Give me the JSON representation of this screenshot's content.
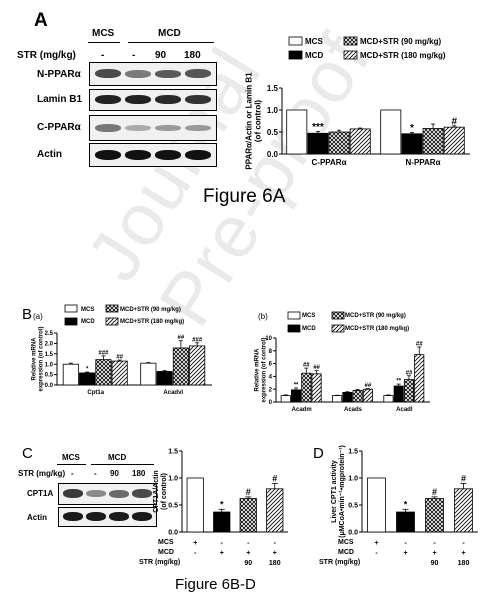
{
  "watermark": "Journal Pre-proof",
  "figure_6a": {
    "panel_letter": "A",
    "caption": "Figure 6A",
    "blot": {
      "group_labels": [
        "MCS",
        "MCD"
      ],
      "str_label": "STR (mg/kg)",
      "str_values": [
        "-",
        "-",
        "90",
        "180"
      ],
      "row_labels": [
        "N-PPARα",
        "Lamin B1",
        "C-PPARα",
        "Actin"
      ]
    },
    "legend": [
      "MCS",
      "MCD",
      "MCD+STR (90 mg/kg)",
      "MCD+STR (180 mg/kg)"
    ],
    "significance": [
      "***",
      "*",
      "#"
    ]
  },
  "figure_6bd": {
    "caption": "Figure 6B-D",
    "panel_b_letter": "B",
    "panel_b_sub": [
      "(a)",
      "(b)"
    ],
    "panel_c_letter": "C",
    "panel_d_letter": "D",
    "blot_c": {
      "group_labels": [
        "MCS",
        "MCD"
      ],
      "str_label": "STR (mg/kg)",
      "str_values": [
        "-",
        "-",
        "90",
        "180"
      ],
      "row_labels": [
        "CPT1A",
        "Actin"
      ]
    },
    "treatment_table": {
      "row_labels": [
        "MCS",
        "MCD",
        "STR (mg/kg)"
      ],
      "rows": [
        [
          "+",
          "-",
          "-",
          "-"
        ],
        [
          "-",
          "+",
          "+",
          "+"
        ],
        [
          "",
          "",
          "90",
          "180"
        ]
      ]
    },
    "legend": [
      "MCS",
      "MCD",
      "MCD+STR (90 mg/kg)",
      "MCD+STR (180 mg/kg)"
    ]
  },
  "chart_data": [
    {
      "id": "fig6a",
      "type": "bar",
      "ylabel": "PPARα/Actin or Lamin B1 (of control)",
      "ylim": [
        0,
        1.5
      ],
      "yticks": [
        "0.0",
        "0.5",
        "1.0",
        "1.5"
      ],
      "categories": [
        "C-PPARα",
        "N-PPARα"
      ],
      "series": [
        {
          "name": "MCS",
          "values": [
            1.0,
            1.0
          ],
          "errors": [
            0,
            0
          ]
        },
        {
          "name": "MCD",
          "values": [
            0.47,
            0.46
          ],
          "errors": [
            0.04,
            0.03
          ]
        },
        {
          "name": "MCD+STR (90 mg/kg)",
          "values": [
            0.5,
            0.58
          ],
          "errors": [
            0.04,
            0.1
          ]
        },
        {
          "name": "MCD+STR (180 mg/kg)",
          "values": [
            0.57,
            0.61
          ],
          "errors": [
            0.02,
            0.03
          ]
        }
      ],
      "annotations": [
        {
          "category": "C-PPARα",
          "series": "MCD",
          "text": "***"
        },
        {
          "category": "N-PPARα",
          "series": "MCD",
          "text": "*"
        },
        {
          "category": "N-PPARα",
          "series": "MCD+STR (180 mg/kg)",
          "text": "#"
        }
      ]
    },
    {
      "id": "fig6ba",
      "type": "bar",
      "ylabel": "Relative mRNA expression (of control)",
      "ylim": [
        0,
        2.5
      ],
      "yticks": [
        "0.0",
        "0.5",
        "1.0",
        "1.5",
        "2.0",
        "2.5"
      ],
      "categories": [
        "Cpt1a",
        "Acadvl"
      ],
      "series": [
        {
          "name": "MCS",
          "values": [
            1.0,
            1.05
          ],
          "errors": [
            0.05,
            0.03
          ]
        },
        {
          "name": "MCD",
          "values": [
            0.58,
            0.65
          ],
          "errors": [
            0.04,
            0.04
          ]
        },
        {
          "name": "MCD+STR (90 mg/kg)",
          "values": [
            1.22,
            1.78
          ],
          "errors": [
            0.18,
            0.35
          ]
        },
        {
          "name": "MCD+STR (180 mg/kg)",
          "values": [
            1.15,
            1.88
          ],
          "errors": [
            0.05,
            0.15
          ]
        }
      ],
      "annotations": [
        {
          "category": "Cpt1a",
          "series": "MCD",
          "text": "*"
        },
        {
          "category": "Cpt1a",
          "series": "MCD+STR (90 mg/kg)",
          "text": "###"
        },
        {
          "category": "Cpt1a",
          "series": "MCD+STR (180 mg/kg)",
          "text": "##"
        },
        {
          "category": "Acadvl",
          "series": "MCD+STR (90 mg/kg)",
          "text": "##"
        },
        {
          "category": "Acadvl",
          "series": "MCD+STR (180 mg/kg)",
          "text": "###"
        }
      ]
    },
    {
      "id": "fig6bb",
      "type": "bar",
      "ylabel": "Relative mRNA expression (of control)",
      "ylim": [
        0,
        10
      ],
      "yticks": [
        "0",
        "2",
        "4",
        "6",
        "8",
        "10"
      ],
      "categories": [
        "Acadm",
        "Acads",
        "Acadl"
      ],
      "series": [
        {
          "name": "MCS",
          "values": [
            1.0,
            1.0,
            1.0
          ],
          "errors": [
            0.1,
            0.05,
            0.1
          ]
        },
        {
          "name": "MCD",
          "values": [
            1.9,
            1.5,
            2.5
          ],
          "errors": [
            0.3,
            0.1,
            0.3
          ]
        },
        {
          "name": "MCD+STR (90 mg/kg)",
          "values": [
            4.5,
            1.8,
            3.5
          ],
          "errors": [
            0.8,
            0.15,
            0.6
          ]
        },
        {
          "name": "MCD+STR (180 mg/kg)",
          "values": [
            4.4,
            2.0,
            7.4
          ],
          "errors": [
            0.5,
            0.1,
            1.2
          ]
        }
      ],
      "annotations": [
        {
          "category": "Acadm",
          "series": "MCD",
          "text": "**"
        },
        {
          "category": "Acadm",
          "series": "MCD+STR (90 mg/kg)",
          "text": "##"
        },
        {
          "category": "Acadm",
          "series": "MCD+STR (180 mg/kg)",
          "text": "##"
        },
        {
          "category": "Acads",
          "series": "MCD+STR (180 mg/kg)",
          "text": "##"
        },
        {
          "category": "Acadl",
          "series": "MCD",
          "text": "**"
        },
        {
          "category": "Acadl",
          "series": "MCD+STR (90 mg/kg)",
          "text": "##"
        },
        {
          "category": "Acadl",
          "series": "MCD+STR (180 mg/kg)",
          "text": "##"
        }
      ]
    },
    {
      "id": "fig6c",
      "type": "bar",
      "ylabel": "CPT1A/Actin (of control)",
      "ylim": [
        0,
        1.5
      ],
      "yticks": [
        "0.0",
        "0.5",
        "1.0",
        "1.5"
      ],
      "categories": [
        "MCS",
        "MCD",
        "MCD+STR 90",
        "MCD+STR 180"
      ],
      "values": [
        1.0,
        0.37,
        0.62,
        0.8
      ],
      "errors": [
        0,
        0.05,
        0.03,
        0.1
      ],
      "annotations": [
        "",
        "*",
        "#",
        "#"
      ]
    },
    {
      "id": "fig6d",
      "type": "bar",
      "ylabel": "Liver CPT1 activity (μMCoA•min⁻¹•mgprotein⁻¹)",
      "ylim": [
        0,
        1.5
      ],
      "yticks": [
        "0.0",
        "0.5",
        "1.0",
        "1.5"
      ],
      "categories": [
        "MCS",
        "MCD",
        "MCD+STR 90",
        "MCD+STR 180"
      ],
      "values": [
        1.0,
        0.37,
        0.62,
        0.8
      ],
      "errors": [
        0,
        0.05,
        0.03,
        0.1
      ],
      "annotations": [
        "",
        "*",
        "#",
        "#"
      ]
    }
  ]
}
